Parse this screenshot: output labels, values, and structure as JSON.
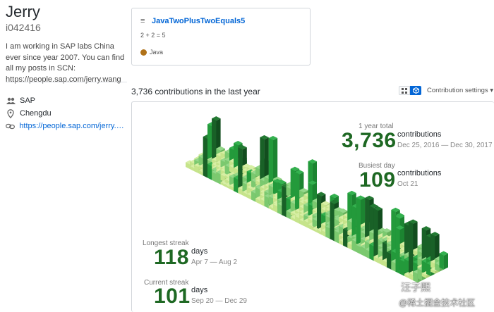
{
  "profile": {
    "name": "Jerry",
    "login": "i042416",
    "bio": "I am working in SAP labs China ever since year 2007. You can find all my posts in SCN: https://people.sap.com/jerry.wang",
    "company": "SAP",
    "location": "Chengdu",
    "website": "https://people.sap.com/jerry.wa..."
  },
  "repo": {
    "name": "JavaTwoPlusTwoEquals5",
    "description": "2 + 2 = 5",
    "language": "Java",
    "language_color": "#b07219"
  },
  "contributions": {
    "heading": "3,736 contributions in the last year",
    "settings_label": "Contribution settings ▾",
    "total_label": "1 year total",
    "total": "3,736",
    "total_unit": "contributions",
    "total_range": "Dec 25, 2016 — Dec 30, 2017",
    "busiest_label": "Busiest day",
    "busiest": "109",
    "busiest_unit": "contributions",
    "busiest_date": "Oct 21",
    "longest_label": "Longest streak",
    "longest": "118",
    "longest_unit": "days",
    "longest_range": "Apr 7 — Aug 2",
    "current_label": "Current streak",
    "current": "101",
    "current_unit": "days",
    "current_range": "Sep 20 — Dec 29"
  },
  "watermark": {
    "line1": "汪子熙",
    "line2": "@稀土掘金技术社区"
  },
  "colors": {
    "level1": "#c6e48b",
    "level2": "#7bc96f",
    "level3": "#239a3b",
    "level4": "#196127"
  }
}
